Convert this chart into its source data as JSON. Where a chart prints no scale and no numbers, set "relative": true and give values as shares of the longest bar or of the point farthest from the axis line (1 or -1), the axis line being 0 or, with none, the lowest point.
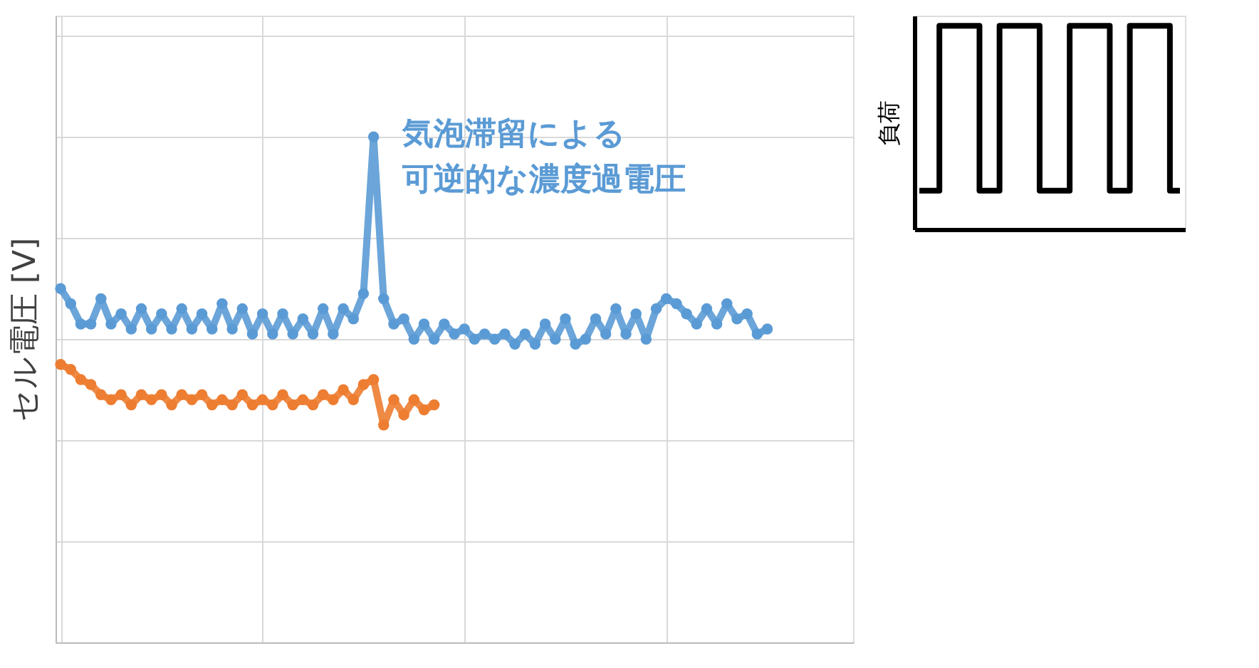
{
  "chart_data": [
    {
      "type": "line",
      "relative": true,
      "marker": "circle",
      "grid": true,
      "tick_labels": false,
      "ylabel": "セル電圧 [V]",
      "categories": [
        null,
        null,
        null,
        null,
        null,
        null,
        null,
        null,
        null,
        null,
        null,
        null,
        null,
        null,
        null,
        null,
        null,
        null,
        null,
        null,
        null,
        null,
        null,
        null,
        null,
        null,
        null,
        null,
        null,
        null,
        null,
        null,
        null,
        null,
        null,
        null,
        null,
        null,
        null,
        null,
        null,
        null,
        null,
        null,
        null,
        null,
        null,
        null,
        null,
        null,
        null,
        null,
        null,
        null,
        null,
        null,
        null,
        null,
        null,
        null,
        null,
        null,
        null,
        null,
        null,
        null,
        null,
        null,
        null,
        null,
        null,
        null,
        null,
        null,
        null,
        null,
        null,
        null,
        null
      ],
      "series": [
        {
          "color": "#5b9bd5",
          "values": [
            0.7,
            0.67,
            0.63,
            0.63,
            0.68,
            0.63,
            0.65,
            0.62,
            0.66,
            0.62,
            0.65,
            0.62,
            0.66,
            0.62,
            0.65,
            0.62,
            0.67,
            0.62,
            0.66,
            0.61,
            0.65,
            0.61,
            0.65,
            0.61,
            0.64,
            0.61,
            0.66,
            0.61,
            0.66,
            0.64,
            0.69,
            1,
            0.68,
            0.63,
            0.64,
            0.6,
            0.63,
            0.6,
            0.63,
            0.61,
            0.62,
            0.6,
            0.61,
            0.6,
            0.61,
            0.59,
            0.61,
            0.59,
            0.63,
            0.6,
            0.64,
            0.59,
            0.6,
            0.64,
            0.61,
            0.66,
            0.61,
            0.65,
            0.6,
            0.66,
            0.68,
            0.67,
            0.65,
            0.63,
            0.66,
            0.63,
            0.67,
            0.64,
            0.65,
            0.61,
            0.62,
            null,
            null,
            null,
            null,
            null,
            null,
            null,
            null
          ]
        },
        {
          "color": "#ed7d31",
          "values": [
            0.55,
            0.54,
            0.52,
            0.51,
            0.49,
            0.48,
            0.49,
            0.47,
            0.49,
            0.48,
            0.49,
            0.47,
            0.49,
            0.48,
            0.49,
            0.47,
            0.48,
            0.47,
            0.49,
            0.47,
            0.48,
            0.47,
            0.49,
            0.47,
            0.48,
            0.47,
            0.49,
            0.48,
            0.5,
            0.48,
            0.51,
            0.52,
            0.43,
            0.48,
            0.45,
            0.48,
            0.46,
            0.47,
            null,
            null,
            null,
            null,
            null,
            null,
            null,
            null,
            null,
            null,
            null,
            null,
            null,
            null,
            null,
            null,
            null,
            null,
            null,
            null,
            null,
            null,
            null,
            null,
            null,
            null,
            null,
            null,
            null,
            null,
            null,
            null,
            null,
            null,
            null,
            null,
            null,
            null,
            null,
            null,
            null
          ]
        }
      ],
      "annotations": [
        "気泡滞留による可逆的な濃度過電圧"
      ]
    },
    {
      "type": "step",
      "relative": true,
      "tick_labels": false,
      "ylabel": "負荷",
      "categories": [
        null,
        null,
        null,
        null,
        null,
        null,
        null,
        null,
        null,
        null,
        null,
        null,
        null,
        null,
        null,
        null,
        null,
        null,
        null,
        null,
        null,
        null,
        null,
        null,
        null,
        null,
        null
      ],
      "series": [
        {
          "color": "#000000",
          "values": [
            0.19,
            0.19,
            1,
            1,
            1,
            1,
            0.19,
            0.19,
            1,
            1,
            1,
            1,
            0.19,
            0.19,
            0.19,
            1,
            1,
            1,
            1,
            0.19,
            0.19,
            1,
            1,
            1,
            1,
            0.19,
            0.19
          ]
        }
      ]
    }
  ]
}
